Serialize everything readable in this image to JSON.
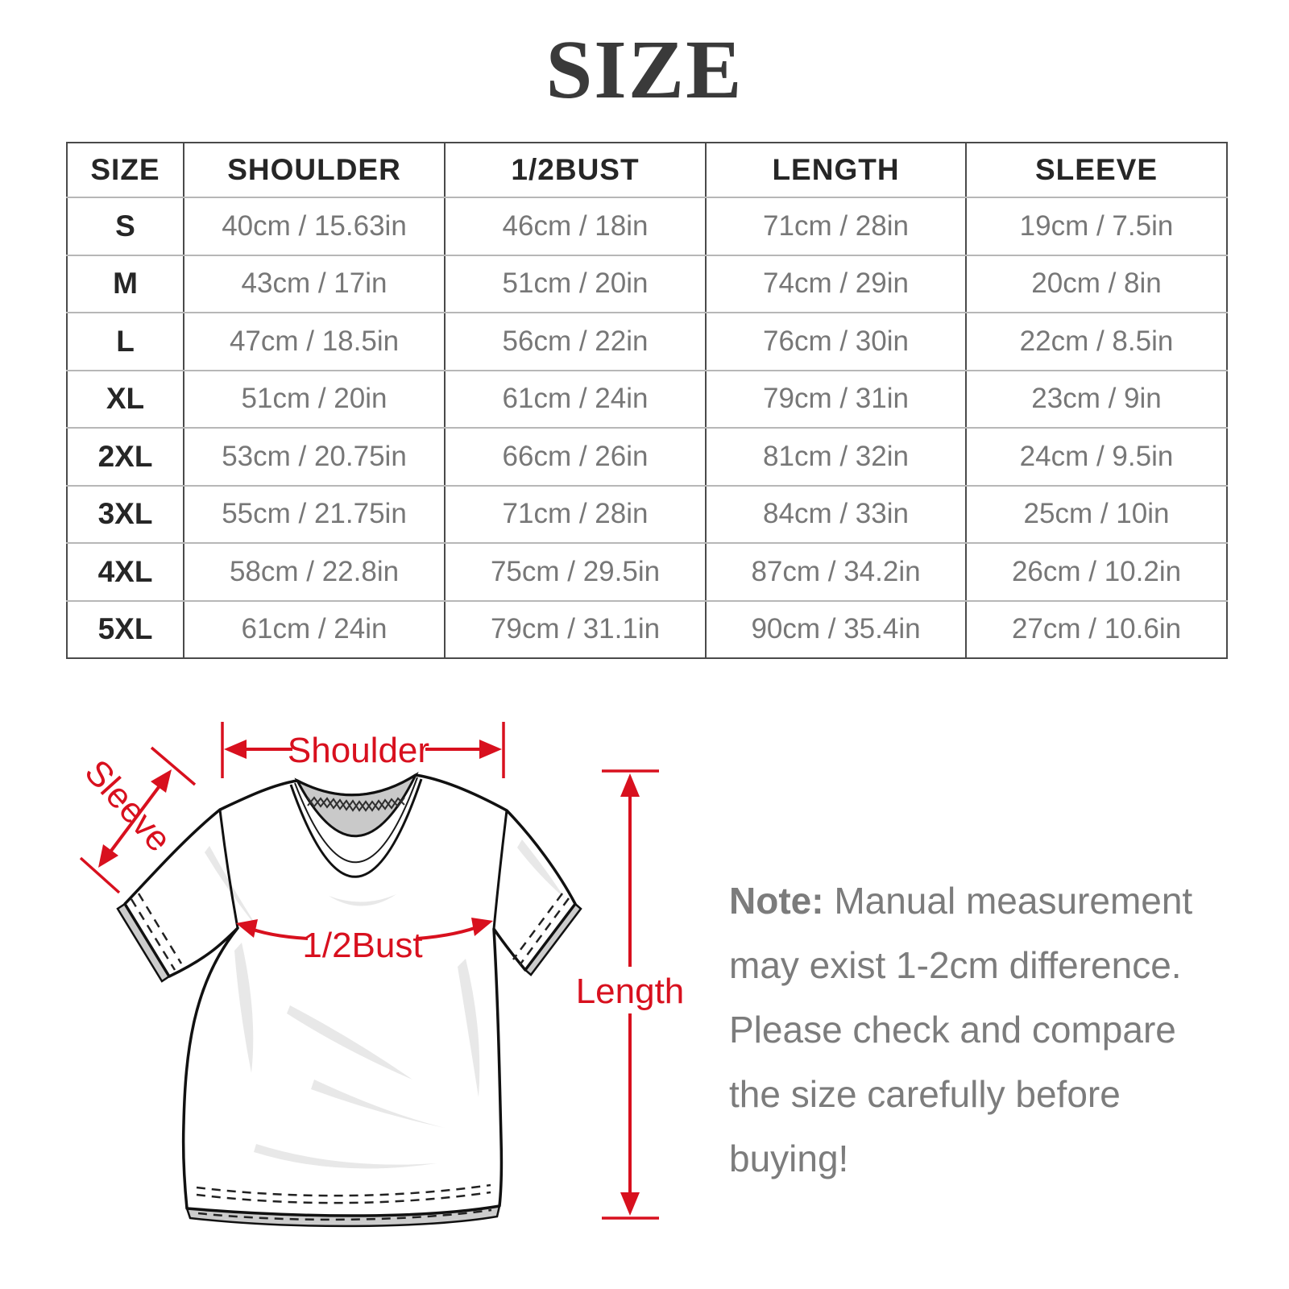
{
  "title": "SIZE",
  "table": {
    "headers": [
      "SIZE",
      "SHOULDER",
      "1/2BUST",
      "LENGTH",
      "SLEEVE"
    ],
    "rows": [
      [
        "S",
        "40cm / 15.63in",
        "46cm / 18in",
        "71cm / 28in",
        "19cm / 7.5in"
      ],
      [
        "M",
        "43cm / 17in",
        "51cm / 20in",
        "74cm / 29in",
        "20cm / 8in"
      ],
      [
        "L",
        "47cm / 18.5in",
        "56cm / 22in",
        "76cm / 30in",
        "22cm / 8.5in"
      ],
      [
        "XL",
        "51cm / 20in",
        "61cm / 24in",
        "79cm / 31in",
        "23cm / 9in"
      ],
      [
        "2XL",
        "53cm / 20.75in",
        "66cm / 26in",
        "81cm / 32in",
        "24cm / 9.5in"
      ],
      [
        "3XL",
        "55cm / 21.75in",
        "71cm / 28in",
        "84cm / 33in",
        "25cm / 10in"
      ],
      [
        "4XL",
        "58cm / 22.8in",
        "75cm / 29.5in",
        "87cm / 34.2in",
        "26cm / 10.2in"
      ],
      [
        "5XL",
        "61cm / 24in",
        "79cm / 31.1in",
        "90cm / 35.4in",
        "27cm / 10.6in"
      ]
    ]
  },
  "diagram": {
    "shoulder_label": "Shoulder",
    "sleeve_label": "Sleeve",
    "bust_label": "1/2Bust",
    "length_label": "Length",
    "accent_color": "#d8101e"
  },
  "note": {
    "prefix": "Note:",
    "body": " Manual measurement may exist 1-2cm difference. Please check and compare the size carefully before buying!"
  }
}
